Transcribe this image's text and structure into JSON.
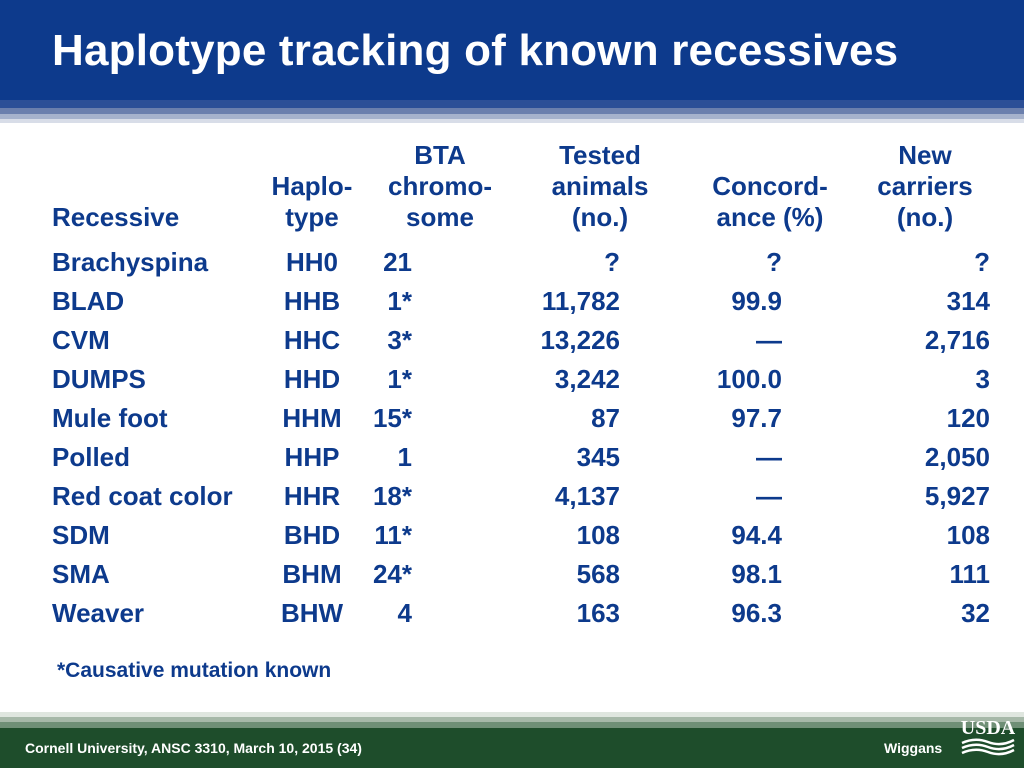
{
  "slide": {
    "title": "Haplotype tracking of known recessives",
    "footnote": "*Causative mutation known",
    "footer_left": "Cornell University, ANSC 3310, March 10, 2015 (34)",
    "footer_right": "Wiggans",
    "logo_text": "USDA"
  },
  "table": {
    "headers": [
      "Recessive",
      "Haplo-\ntype",
      "BTA\nchromo-\nsome",
      "Tested\nanimals\n(no.)",
      "Concord-\nance (%)",
      "New\ncarriers\n(no.)"
    ],
    "rows": [
      [
        "Brachyspina",
        "HH0",
        "21",
        "?",
        "?",
        "?"
      ],
      [
        "BLAD",
        "HHB",
        "1*",
        "11,782",
        "99.9",
        "314"
      ],
      [
        "CVM",
        "HHC",
        "3*",
        "13,226",
        "—",
        "2,716"
      ],
      [
        "DUMPS",
        "HHD",
        "1*",
        "3,242",
        "100.0",
        "3"
      ],
      [
        "Mule foot",
        "HHM",
        "15*",
        "87",
        "97.7",
        "120"
      ],
      [
        "Polled",
        "HHP",
        "1",
        "345",
        "—",
        "2,050"
      ],
      [
        "Red coat color",
        "HHR",
        "18*",
        "4,137",
        "—",
        "5,927"
      ],
      [
        "SDM",
        "BHD",
        "11*",
        "108",
        "94.4",
        "108"
      ],
      [
        "SMA",
        "BHM",
        "24*",
        "568",
        "98.1",
        "111"
      ],
      [
        "Weaver",
        "BHW",
        "4",
        "163",
        "96.3",
        "32"
      ]
    ]
  },
  "colors": {
    "title_bar": "#0d3a8c",
    "text": "#0d3a8c",
    "footer_bar": "#1e4d2b"
  }
}
